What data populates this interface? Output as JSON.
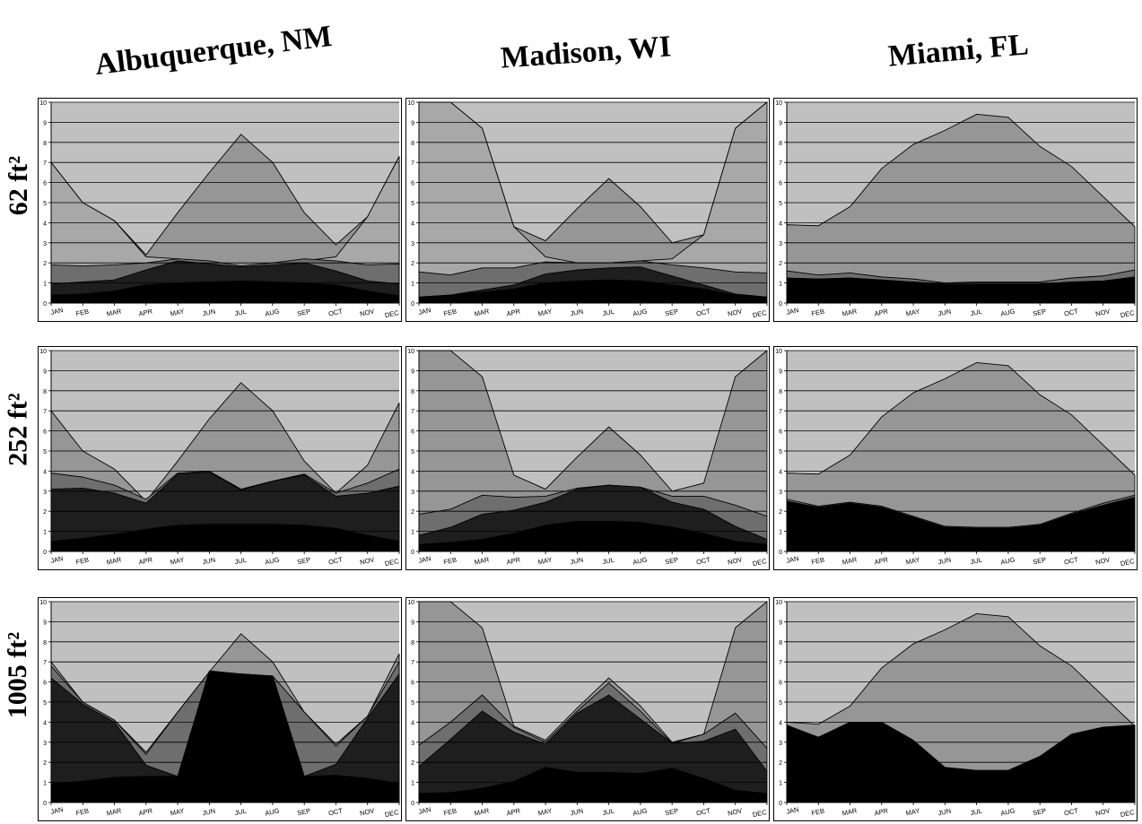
{
  "columns": [
    "Albuquerque, NM",
    "Madison, WI",
    "Miami, FL"
  ],
  "rows": [
    "62 ft²",
    "252 ft²",
    "1005 ft²"
  ],
  "months": [
    "JAN",
    "FEB",
    "MAR",
    "APR",
    "MAY",
    "JUN",
    "JUL",
    "AUG",
    "SEP",
    "OCT",
    "NOV",
    "DEC"
  ],
  "colors": {
    "plot_bg": "#c0c0c0",
    "layer_top": "#969696",
    "layer_mid": "#6e6e6e",
    "layer_dark": "#1e1e1e",
    "layer_black": "#000000",
    "grid": "#000000"
  },
  "chart_data": [
    {
      "type": "area",
      "column": "Albuquerque, NM",
      "row": "62 ft²",
      "ylim": [
        0,
        10
      ],
      "yticks": [
        "0",
        "1",
        "2",
        "3",
        "4",
        "5",
        "6",
        "7",
        "8",
        "9",
        "10"
      ],
      "categories": [
        "JAN",
        "FEB",
        "MAR",
        "APR",
        "MAY",
        "JUN",
        "JUL",
        "AUG",
        "SEP",
        "OCT",
        "NOV",
        "DEC"
      ],
      "series": [
        {
          "values": [
            7.0,
            5.0,
            4.1,
            2.4,
            4.5,
            6.5,
            8.4,
            7.0,
            4.5,
            2.9,
            4.3,
            7.3
          ],
          "color": "#969696"
        },
        {
          "values": [
            7.0,
            5.0,
            4.1,
            2.3,
            2.2,
            2.0,
            1.8,
            2.0,
            2.1,
            2.3,
            4.3,
            7.3
          ],
          "color": "#a8a8a8"
        },
        {
          "values": [
            1.9,
            1.85,
            1.9,
            2.0,
            2.2,
            2.1,
            1.85,
            2.0,
            2.2,
            2.1,
            1.9,
            1.95
          ],
          "color": "#6e6e6e"
        },
        {
          "values": [
            0.95,
            1.05,
            1.15,
            1.65,
            2.1,
            1.95,
            1.8,
            1.9,
            2.0,
            1.6,
            1.1,
            0.95
          ],
          "color": "#1e1e1e"
        },
        {
          "values": [
            0.4,
            0.45,
            0.6,
            0.9,
            1.0,
            1.05,
            1.1,
            1.05,
            1.0,
            0.9,
            0.6,
            0.35
          ],
          "color": "#000000"
        }
      ]
    },
    {
      "type": "area",
      "column": "Madison, WI",
      "row": "62 ft²",
      "ylim": [
        0,
        10
      ],
      "yticks": [
        "0",
        "1",
        "2",
        "3",
        "4",
        "5",
        "6",
        "7",
        "8",
        "9",
        "10"
      ],
      "categories": [
        "JAN",
        "FEB",
        "MAR",
        "APR",
        "MAY",
        "JUN",
        "JUL",
        "AUG",
        "SEP",
        "OCT",
        "NOV",
        "DEC"
      ],
      "series": [
        {
          "values": [
            10,
            10,
            8.7,
            3.8,
            3.1,
            4.7,
            6.2,
            4.8,
            3.0,
            3.4,
            8.7,
            10
          ],
          "color": "#969696"
        },
        {
          "values": [
            10,
            10,
            8.7,
            3.8,
            2.3,
            2.0,
            2.0,
            2.1,
            2.2,
            3.4,
            8.7,
            10
          ],
          "color": "#a8a8a8"
        },
        {
          "values": [
            1.55,
            1.4,
            1.75,
            1.75,
            2.05,
            2.0,
            2.0,
            2.1,
            1.9,
            1.75,
            1.55,
            1.5
          ],
          "color": "#6e6e6e"
        },
        {
          "values": [
            0.3,
            0.4,
            0.65,
            0.9,
            1.45,
            1.65,
            1.75,
            1.8,
            1.35,
            0.9,
            0.45,
            0.3
          ],
          "color": "#1e1e1e"
        },
        {
          "values": [
            0.3,
            0.4,
            0.55,
            0.7,
            1.0,
            1.1,
            1.15,
            1.1,
            0.9,
            0.7,
            0.4,
            0.3
          ],
          "color": "#000000"
        }
      ]
    },
    {
      "type": "area",
      "column": "Miami, FL",
      "row": "62 ft²",
      "ylim": [
        0,
        10
      ],
      "yticks": [
        "0",
        "1",
        "2",
        "3",
        "4",
        "5",
        "6",
        "7",
        "8",
        "9",
        "10"
      ],
      "categories": [
        "JAN",
        "FEB",
        "MAR",
        "APR",
        "MAY",
        "JUN",
        "JUL",
        "AUG",
        "SEP",
        "OCT",
        "NOV",
        "DEC"
      ],
      "series": [
        {
          "values": [
            3.9,
            3.85,
            4.8,
            6.7,
            7.9,
            8.6,
            9.4,
            9.25,
            7.8,
            6.8,
            5.3,
            3.8
          ],
          "color": "#969696"
        },
        {
          "values": [
            1.6,
            1.4,
            1.5,
            1.3,
            1.2,
            1.0,
            1.05,
            1.05,
            1.05,
            1.25,
            1.35,
            1.65
          ],
          "color": "#6e6e6e"
        },
        {
          "values": [
            1.25,
            1.2,
            1.25,
            1.15,
            1.05,
            0.95,
            0.95,
            0.95,
            0.95,
            1.05,
            1.1,
            1.3
          ],
          "color": "#000000"
        }
      ]
    },
    {
      "type": "area",
      "column": "Albuquerque, NM",
      "row": "252 ft²",
      "ylim": [
        0,
        10
      ],
      "yticks": [
        "0",
        "1",
        "2",
        "3",
        "4",
        "5",
        "6",
        "7",
        "8",
        "9",
        "10"
      ],
      "categories": [
        "JAN",
        "FEB",
        "MAR",
        "APR",
        "MAY",
        "JUN",
        "JUL",
        "AUG",
        "SEP",
        "OCT",
        "NOV",
        "DEC"
      ],
      "series": [
        {
          "values": [
            7.0,
            5.0,
            4.1,
            2.5,
            4.5,
            6.6,
            8.4,
            7.0,
            4.5,
            2.9,
            4.3,
            7.4
          ],
          "color": "#969696"
        },
        {
          "values": [
            3.9,
            3.7,
            3.3,
            2.6,
            3.9,
            4.0,
            3.1,
            3.5,
            3.85,
            2.9,
            3.4,
            4.1
          ],
          "color": "#6e6e6e"
        },
        {
          "values": [
            3.1,
            3.15,
            2.9,
            2.4,
            3.85,
            3.95,
            3.05,
            3.5,
            3.8,
            2.75,
            2.9,
            3.25
          ],
          "color": "#1e1e1e"
        },
        {
          "values": [
            0.5,
            0.65,
            0.85,
            1.1,
            1.3,
            1.35,
            1.35,
            1.35,
            1.3,
            1.15,
            0.8,
            0.5
          ],
          "color": "#000000"
        }
      ]
    },
    {
      "type": "area",
      "column": "Madison, WI",
      "row": "252 ft²",
      "ylim": [
        0,
        10
      ],
      "yticks": [
        "0",
        "1",
        "2",
        "3",
        "4",
        "5",
        "6",
        "7",
        "8",
        "9",
        "10"
      ],
      "categories": [
        "JAN",
        "FEB",
        "MAR",
        "APR",
        "MAY",
        "JUN",
        "JUL",
        "AUG",
        "SEP",
        "OCT",
        "NOV",
        "DEC"
      ],
      "series": [
        {
          "values": [
            10,
            10,
            8.7,
            3.8,
            3.1,
            4.7,
            6.2,
            4.8,
            3.0,
            3.4,
            8.7,
            10
          ],
          "color": "#969696"
        },
        {
          "values": [
            1.85,
            2.1,
            2.8,
            2.7,
            2.75,
            3.15,
            3.3,
            3.2,
            2.75,
            2.75,
            2.3,
            1.75
          ],
          "color": "#6e6e6e"
        },
        {
          "values": [
            0.8,
            1.2,
            1.85,
            2.05,
            2.45,
            3.1,
            3.3,
            3.2,
            2.45,
            2.1,
            1.25,
            0.6
          ],
          "color": "#1e1e1e"
        },
        {
          "values": [
            0.35,
            0.45,
            0.6,
            0.9,
            1.3,
            1.5,
            1.5,
            1.45,
            1.2,
            0.9,
            0.5,
            0.35
          ],
          "color": "#000000"
        }
      ]
    },
    {
      "type": "area",
      "column": "Miami, FL",
      "row": "252 ft²",
      "ylim": [
        0,
        10
      ],
      "yticks": [
        "0",
        "1",
        "2",
        "3",
        "4",
        "5",
        "6",
        "7",
        "8",
        "9",
        "10"
      ],
      "categories": [
        "JAN",
        "FEB",
        "MAR",
        "APR",
        "MAY",
        "JUN",
        "JUL",
        "AUG",
        "SEP",
        "OCT",
        "NOV",
        "DEC"
      ],
      "series": [
        {
          "values": [
            3.9,
            3.85,
            4.8,
            6.7,
            7.9,
            8.6,
            9.4,
            9.25,
            7.8,
            6.8,
            5.3,
            3.8
          ],
          "color": "#969696"
        },
        {
          "values": [
            2.6,
            2.25,
            2.45,
            2.25,
            1.75,
            1.25,
            1.2,
            1.2,
            1.35,
            1.9,
            2.4,
            2.8
          ],
          "color": "#6e6e6e"
        },
        {
          "values": [
            2.5,
            2.2,
            2.4,
            2.2,
            1.7,
            1.2,
            1.15,
            1.15,
            1.3,
            1.85,
            2.3,
            2.7
          ],
          "color": "#000000"
        }
      ]
    },
    {
      "type": "area",
      "column": "Albuquerque, NM",
      "row": "1005 ft²",
      "ylim": [
        0,
        10
      ],
      "yticks": [
        "0",
        "1",
        "2",
        "3",
        "4",
        "5",
        "6",
        "7",
        "8",
        "9",
        "10"
      ],
      "categories": [
        "JAN",
        "FEB",
        "MAR",
        "APR",
        "MAY",
        "JUN",
        "JUL",
        "AUG",
        "SEP",
        "OCT",
        "NOV",
        "DEC"
      ],
      "series": [
        {
          "values": [
            7.0,
            5.0,
            4.1,
            2.5,
            4.5,
            6.5,
            8.4,
            7.0,
            4.5,
            2.9,
            4.3,
            7.4
          ],
          "color": "#969696"
        },
        {
          "values": [
            6.8,
            5.0,
            4.1,
            2.4,
            4.5,
            6.5,
            6.4,
            6.3,
            4.5,
            2.8,
            4.3,
            7.0
          ],
          "color": "#6e6e6e"
        },
        {
          "values": [
            6.2,
            4.9,
            4.0,
            1.85,
            1.3,
            6.5,
            6.4,
            6.3,
            1.3,
            1.9,
            4.2,
            6.4
          ],
          "color": "#1e1e1e"
        },
        {
          "values": [
            0.95,
            1.05,
            1.25,
            1.3,
            1.3,
            6.55,
            6.4,
            6.3,
            1.3,
            1.35,
            1.2,
            0.95
          ],
          "color": "#000000"
        }
      ]
    },
    {
      "type": "area",
      "column": "Madison, WI",
      "row": "1005 ft²",
      "ylim": [
        0,
        10
      ],
      "yticks": [
        "0",
        "1",
        "2",
        "3",
        "4",
        "5",
        "6",
        "7",
        "8",
        "9",
        "10"
      ],
      "categories": [
        "JAN",
        "FEB",
        "MAR",
        "APR",
        "MAY",
        "JUN",
        "JUL",
        "AUG",
        "SEP",
        "OCT",
        "NOV",
        "DEC"
      ],
      "series": [
        {
          "values": [
            10,
            10,
            8.7,
            3.8,
            3.1,
            4.7,
            6.2,
            4.8,
            3.0,
            3.4,
            8.7,
            10
          ],
          "color": "#969696"
        },
        {
          "values": [
            2.85,
            4.0,
            5.35,
            3.75,
            3.0,
            4.55,
            5.95,
            4.55,
            2.95,
            3.4,
            4.45,
            2.7
          ],
          "color": "#6e6e6e"
        },
        {
          "values": [
            1.8,
            3.15,
            4.55,
            3.5,
            2.9,
            4.45,
            5.35,
            4.15,
            2.95,
            3.05,
            3.65,
            1.55
          ],
          "color": "#1e1e1e"
        },
        {
          "values": [
            0.45,
            0.5,
            0.7,
            1.05,
            1.75,
            1.5,
            1.5,
            1.45,
            1.7,
            1.2,
            0.6,
            0.45
          ],
          "color": "#000000"
        }
      ]
    },
    {
      "type": "area",
      "column": "Miami, FL",
      "row": "1005 ft²",
      "ylim": [
        0,
        10
      ],
      "yticks": [
        "0",
        "1",
        "2",
        "3",
        "4",
        "5",
        "6",
        "7",
        "8",
        "9",
        "10"
      ],
      "categories": [
        "JAN",
        "FEB",
        "MAR",
        "APR",
        "MAY",
        "JUN",
        "JUL",
        "AUG",
        "SEP",
        "OCT",
        "NOV",
        "DEC"
      ],
      "series": [
        {
          "values": [
            4.0,
            3.9,
            4.8,
            6.7,
            7.9,
            8.6,
            9.4,
            9.25,
            7.8,
            6.8,
            5.3,
            3.8
          ],
          "color": "#969696"
        },
        {
          "values": [
            3.85,
            3.25,
            4.0,
            4.0,
            3.1,
            1.75,
            1.6,
            1.6,
            2.3,
            3.4,
            3.75,
            3.85
          ],
          "color": "#000000"
        }
      ]
    }
  ]
}
